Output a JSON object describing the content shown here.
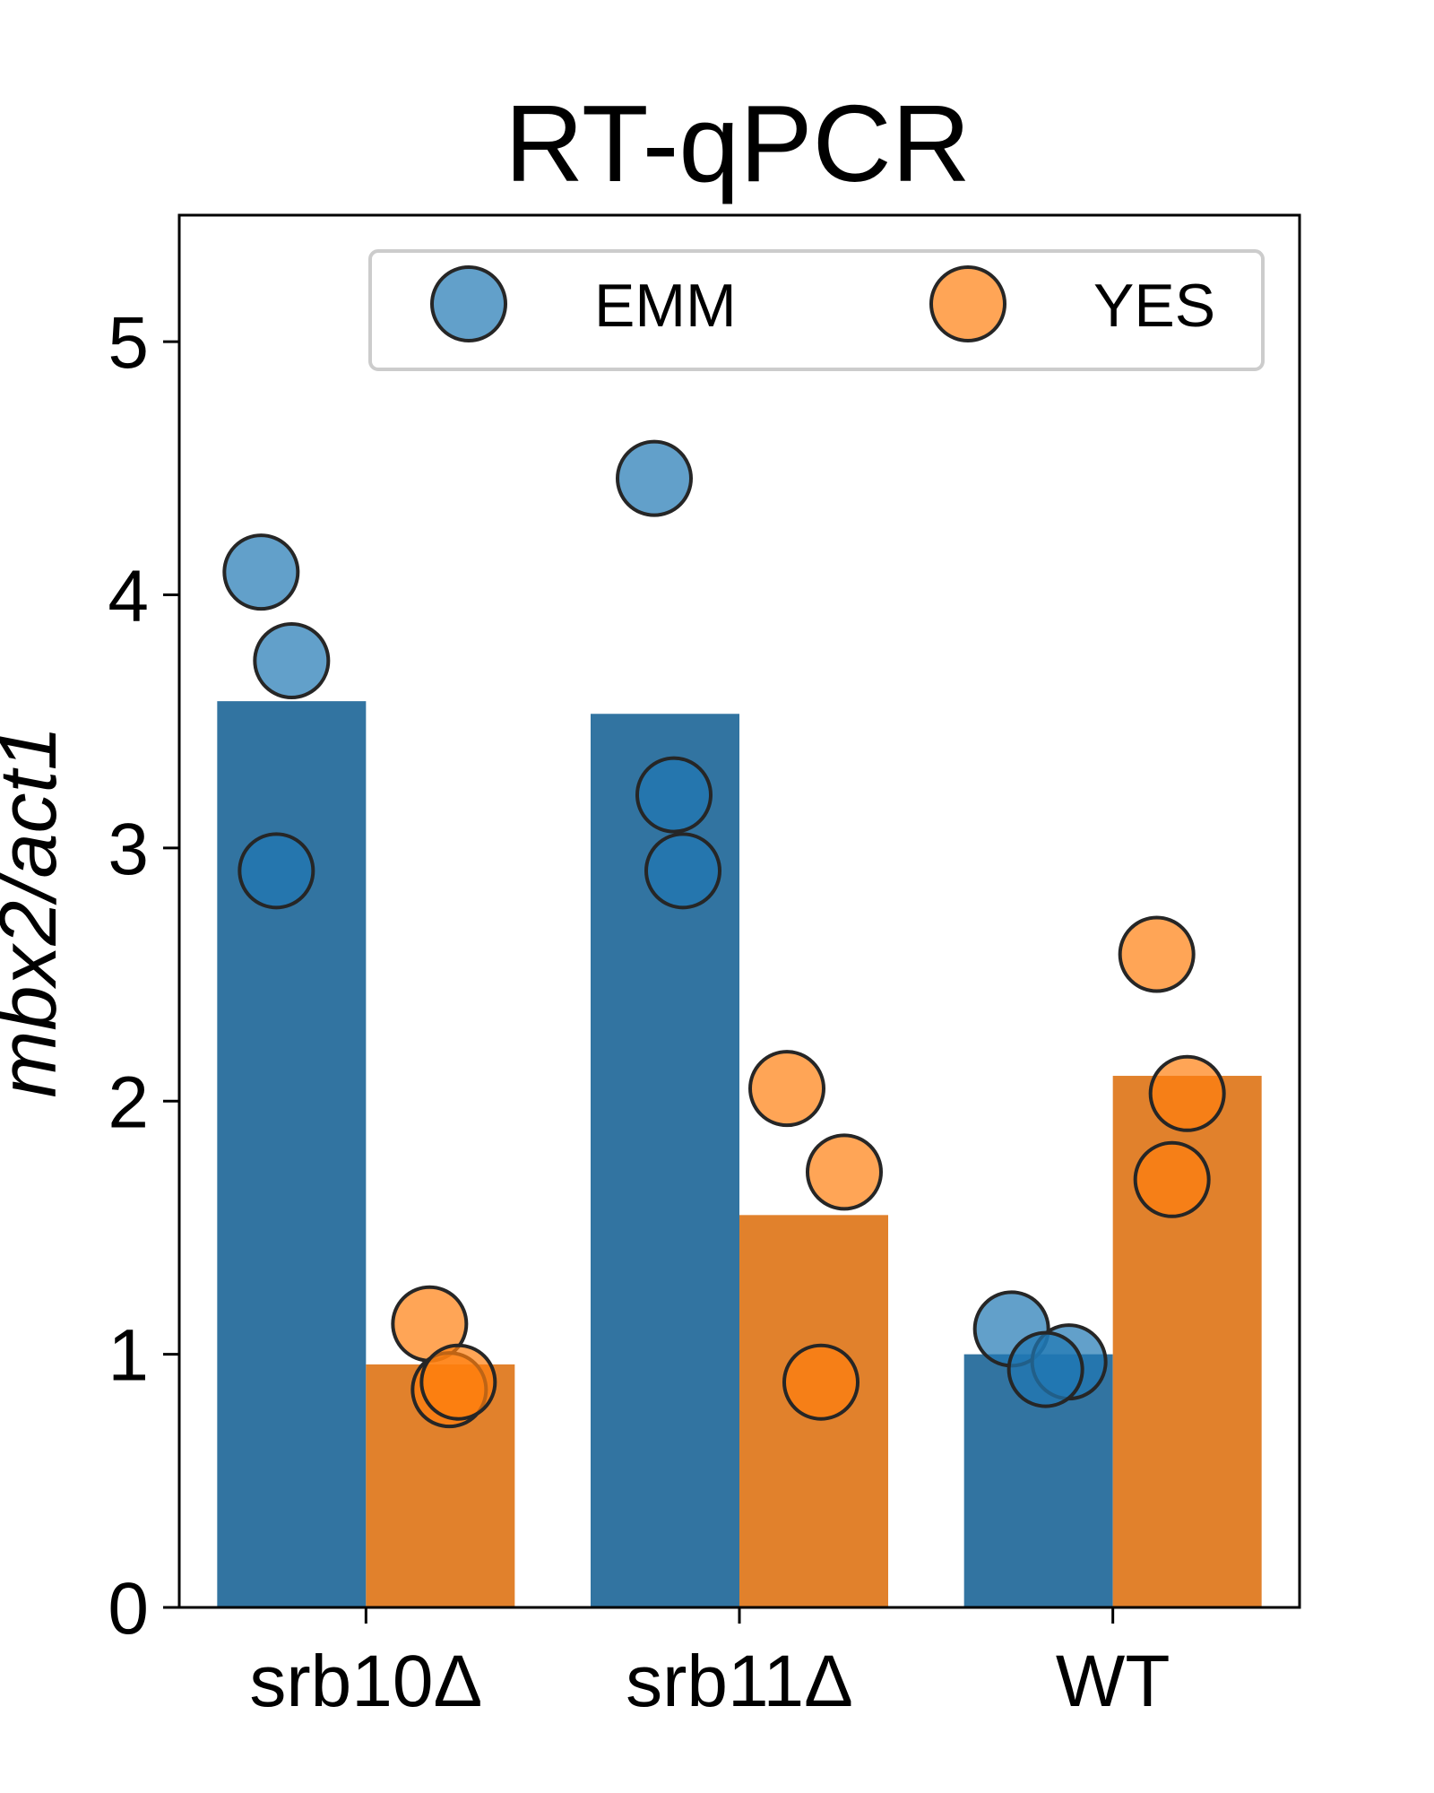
{
  "chart_data": {
    "type": "bar",
    "title": "RT-qPCR",
    "xlabel": "",
    "ylabel": "mbx2/act1",
    "ylim": [
      0,
      5.5
    ],
    "yticks": [
      0,
      1,
      2,
      3,
      4,
      5
    ],
    "categories": [
      "srb10Δ",
      "srb11Δ",
      "WT"
    ],
    "series": [
      {
        "name": "EMM",
        "color": "#1f77b4",
        "bar_color": "#3274a1",
        "values": [
          3.58,
          3.53,
          1.0
        ],
        "points": [
          [
            4.09,
            3.74,
            2.91
          ],
          [
            4.46,
            3.21,
            2.91
          ],
          [
            1.1,
            0.97,
            0.94
          ]
        ]
      },
      {
        "name": "YES",
        "color": "#ff7f0e",
        "bar_color": "#e1812c",
        "values": [
          0.96,
          1.55,
          2.1
        ],
        "points": [
          [
            1.12,
            0.86,
            0.89
          ],
          [
            2.05,
            1.72,
            0.89
          ],
          [
            2.58,
            2.03,
            1.69
          ]
        ]
      }
    ],
    "legend": {
      "position": "top-right",
      "columns": 2
    },
    "grid": false
  }
}
